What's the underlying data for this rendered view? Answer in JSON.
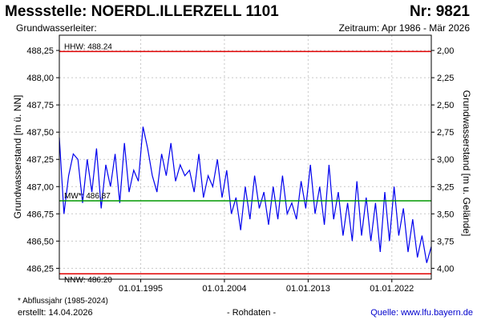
{
  "header": {
    "title": "Messstelle: NOERDL.ILLERZELL 1101",
    "number": "Nr: 9821",
    "aquifer_label": "Grundwasserleiter:",
    "period": "Zeitraum: Apr 1986 - Mär 2026"
  },
  "footer": {
    "footnote": "* Abflussjahr (1985-2024)",
    "created": "erstellt:  14.04.2026",
    "raw_data": "- Rohdaten -",
    "source": "Quelle: www.lfu.bayern.de"
  },
  "chart_data": {
    "type": "line",
    "title": "",
    "ylabel": "Grundwasserstand [m ü. NN]",
    "y2label": "Grundwasserstand [m u. Gelände]",
    "xlabel": "",
    "x_range": [
      "1986-04-01",
      "2026-03-31"
    ],
    "ylim": [
      486.15,
      488.39
    ],
    "y_ticks": [
      486.25,
      486.5,
      486.75,
      487.0,
      487.25,
      487.5,
      487.75,
      488.0,
      488.25
    ],
    "y_tick_labels": [
      "486,25",
      "486,50",
      "486,75",
      "487,00",
      "487,25",
      "487,50",
      "487,75",
      "488,00",
      "488,25"
    ],
    "y2_ticks": [
      2.0,
      2.25,
      2.5,
      2.75,
      3.0,
      3.25,
      3.5,
      3.75,
      4.0
    ],
    "y2_tick_labels": [
      "2,00",
      "2,25",
      "2,50",
      "2,75",
      "3,00",
      "3,25",
      "3,50",
      "3,75",
      "4,00"
    ],
    "y2_offset": 490.25,
    "x_ticks": [
      "1995-01-01",
      "2004-01-01",
      "2013-01-01",
      "2022-01-01"
    ],
    "x_tick_labels": [
      "01.01.1995",
      "01.01.2004",
      "01.01.2013",
      "01.01.2022"
    ],
    "grid": true,
    "reference_lines": [
      {
        "label": "HHW: 488.24",
        "value": 488.24,
        "color": "#e00000"
      },
      {
        "label": "MW*: 486.87",
        "value": 486.87,
        "color": "#009900"
      },
      {
        "label": "NNW: 486.20",
        "value": 486.2,
        "color": "#e00000"
      }
    ],
    "series": [
      {
        "color": "#0000ee",
        "x": [
          "1986-04-01",
          "1986-10-01",
          "1987-04-01",
          "1987-10-01",
          "1988-04-01",
          "1988-10-01",
          "1989-04-01",
          "1989-10-01",
          "1990-04-01",
          "1990-10-01",
          "1991-04-01",
          "1991-10-01",
          "1992-04-01",
          "1992-10-01",
          "1993-04-01",
          "1993-10-01",
          "1994-04-01",
          "1994-10-01",
          "1995-04-01",
          "1995-10-01",
          "1996-04-01",
          "1996-10-01",
          "1997-04-01",
          "1997-10-01",
          "1998-04-01",
          "1998-10-01",
          "1999-04-01",
          "1999-10-01",
          "2000-04-01",
          "2000-10-01",
          "2001-04-01",
          "2001-10-01",
          "2002-04-01",
          "2002-10-01",
          "2003-04-01",
          "2003-10-01",
          "2004-04-01",
          "2004-10-01",
          "2005-04-01",
          "2005-10-01",
          "2006-04-01",
          "2006-10-01",
          "2007-04-01",
          "2007-10-01",
          "2008-04-01",
          "2008-10-01",
          "2009-04-01",
          "2009-10-01",
          "2010-04-01",
          "2010-10-01",
          "2011-04-01",
          "2011-10-01",
          "2012-04-01",
          "2012-10-01",
          "2013-04-01",
          "2013-10-01",
          "2014-04-01",
          "2014-10-01",
          "2015-04-01",
          "2015-10-01",
          "2016-04-01",
          "2016-10-01",
          "2017-04-01",
          "2017-10-01",
          "2018-04-01",
          "2018-10-01",
          "2019-04-01",
          "2019-10-01",
          "2020-04-01",
          "2020-10-01",
          "2021-04-01",
          "2021-10-01",
          "2022-04-01",
          "2022-10-01",
          "2023-04-01",
          "2023-10-01",
          "2024-04-01",
          "2024-10-01",
          "2025-04-01",
          "2025-10-01",
          "2026-03-31"
        ],
        "y": [
          487.45,
          486.75,
          487.1,
          487.3,
          487.25,
          486.85,
          487.25,
          486.95,
          487.35,
          486.8,
          487.2,
          487.0,
          487.3,
          486.85,
          487.4,
          486.95,
          487.15,
          487.05,
          487.55,
          487.35,
          487.1,
          486.95,
          487.3,
          487.1,
          487.4,
          487.05,
          487.2,
          487.1,
          487.15,
          486.95,
          487.3,
          486.9,
          487.1,
          487.0,
          487.25,
          486.9,
          487.15,
          486.75,
          486.9,
          486.6,
          487.0,
          486.7,
          487.1,
          486.8,
          486.95,
          486.65,
          487.0,
          486.7,
          487.1,
          486.75,
          486.85,
          486.7,
          487.05,
          486.8,
          487.2,
          486.75,
          487.0,
          486.65,
          487.2,
          486.7,
          486.95,
          486.55,
          486.85,
          486.5,
          487.05,
          486.55,
          486.9,
          486.5,
          486.85,
          486.4,
          486.95,
          486.5,
          487.0,
          486.55,
          486.8,
          486.4,
          486.7,
          486.35,
          486.55,
          486.3,
          486.45
        ]
      }
    ]
  }
}
